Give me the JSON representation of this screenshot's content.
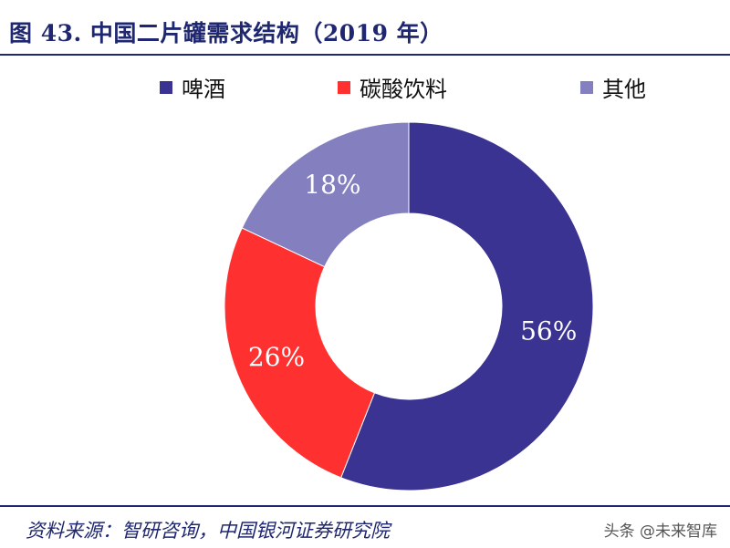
{
  "title": "图 43. 中国二片罐需求结构（2019 年）",
  "source": "资料来源：智研咨询，中国银河证券研究院",
  "watermark": "头条 @未来智库",
  "colors": {
    "beer": "#3b3391",
    "carbonated": "#ff3030",
    "other": "#8480c0",
    "title": "#1f2770"
  },
  "chart_data": {
    "type": "pie",
    "donut": true,
    "categories": [
      "啤酒",
      "碳酸饮料",
      "其他"
    ],
    "values": [
      56,
      26,
      18
    ],
    "labels": [
      "56%",
      "26%",
      "18%"
    ],
    "colors": [
      "#3b3391",
      "#ff3030",
      "#8480c0"
    ],
    "legend_position": "top"
  }
}
